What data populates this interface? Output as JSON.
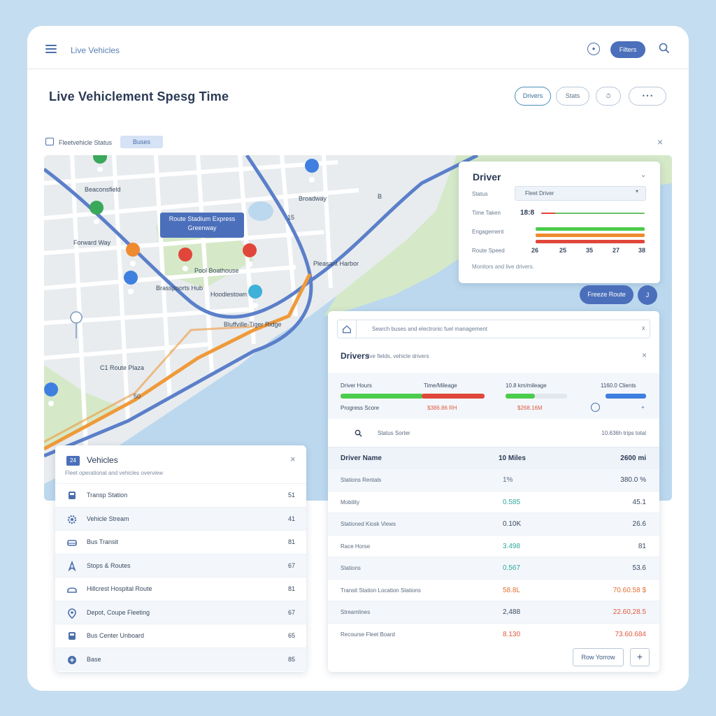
{
  "topbar": {
    "title": "Live Vehicles",
    "button_label": "Filters",
    "circle_label": "●"
  },
  "header": {
    "title": "Live Vehiclement Spesg Time",
    "buttons": [
      "Drivers",
      "Stats",
      "⏱",
      "• • •"
    ]
  },
  "filter": {
    "label": "Fleetvehicle Status",
    "chip": "Buses"
  },
  "map": {
    "labels": [
      "Beaconsfield",
      "Broadway",
      "Forward Way",
      "Brasspoorts Hub",
      "Hoodiestown",
      "Bluffville-Tiger Ridge",
      "Pleasant Harbor",
      "Pool Boathouse",
      "C1 Route Plaza",
      "15",
      "B",
      "50"
    ],
    "info_box": "Route Stadium Express Greenway"
  },
  "driver_card": {
    "title": "Driver",
    "labels": [
      "Status",
      "Time Taken",
      "Engagement",
      "Route Speed"
    ],
    "select_value": "Fleet Driver",
    "time_value": "18:8",
    "numbers": [
      "26",
      "25",
      "35",
      "27",
      "38"
    ],
    "footer": "Monitors and live drivers."
  },
  "map_buttons": {
    "pill": "Freeze Route",
    "circle": "J"
  },
  "vehicles_panel": {
    "icon_label": "24",
    "title": "Vehicles",
    "subtitle": "Fleet operational and vehicles overview",
    "rows": [
      {
        "icon": "bus-icon",
        "label": "Transp Station",
        "value": "51"
      },
      {
        "icon": "gear-icon",
        "label": "Vehicle Stream",
        "value": "41"
      },
      {
        "icon": "car-icon",
        "label": "Bus Transit",
        "value": "81"
      },
      {
        "icon": "bike-icon",
        "label": "Stops & Routes",
        "value": "67"
      },
      {
        "icon": "truck-icon",
        "label": "Hillcrest Hospital Route",
        "value": "81"
      },
      {
        "icon": "pin-icon",
        "label": "Depot, Coupe Fleeting",
        "value": "67"
      },
      {
        "icon": "bus-icon",
        "label": "Bus Center Unboard",
        "value": "65"
      },
      {
        "icon": "globe-icon",
        "label": "Base",
        "value": "85"
      }
    ]
  },
  "drivers_panel": {
    "search_placeholder": "Search buses and electronic fuel management",
    "title": "Drivers",
    "title_sub": "live fields, vehicle drivers",
    "stats": [
      {
        "label": "Driver Hours",
        "sub": "Progress Score"
      },
      {
        "label": "Time/Mileage",
        "sub": "$386.86 RH"
      },
      {
        "label": "10.8 km/mileage",
        "sub": "$268.16M"
      },
      {
        "label": "1160.0 Clients",
        "sub": "+"
      }
    ],
    "sort_label": "Status Sorter",
    "sort_right": "10.636h trips total",
    "columns": [
      "Driver Name",
      "10 Miles",
      "2600 mi"
    ],
    "rows": [
      {
        "name": "Stations Rentals",
        "mid": "1%",
        "right": "380.0 %",
        "mid_color": "#5a6a80",
        "right_color": "#3a4a60"
      },
      {
        "name": "Mobility",
        "mid": "0.585",
        "right": "45.1",
        "mid_color": "#2fa89a",
        "right_color": "#3a4a60"
      },
      {
        "name": "Stationed Kiosk Views",
        "mid": "0.10K",
        "right": "26.6",
        "mid_color": "#3a4a60",
        "right_color": "#3a4a60"
      },
      {
        "name": "Race Horse",
        "mid": "3.498",
        "right": "81",
        "mid_color": "#2fa89a",
        "right_color": "#3a4a60"
      },
      {
        "name": "Stations",
        "mid": "0.567",
        "right": "53.6",
        "mid_color": "#2fa89a",
        "right_color": "#3a4a60"
      },
      {
        "name": "Transit Station Location Stations",
        "mid": "58.8L",
        "right": "70.60.58 $",
        "mid_color": "#e07030",
        "right_color": "#e07030"
      },
      {
        "name": "Streamlines",
        "mid": "2,488",
        "right": "22.60,28.5",
        "mid_color": "#3a4a60",
        "right_color": "#e05a40"
      },
      {
        "name": "Recourse Fleet Board",
        "mid": "8.130",
        "right": "73.60.684",
        "mid_color": "#e05a40",
        "right_color": "#e05a40"
      }
    ],
    "footer_button": "Row Yorrow",
    "plus_button": "+"
  }
}
